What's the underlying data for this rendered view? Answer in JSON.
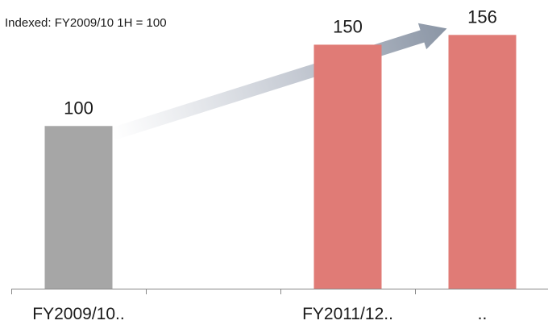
{
  "subtitle": "Indexed:  FY2009/10 1H = 100",
  "chart_data": {
    "type": "bar",
    "categories": [
      "FY2009/10..",
      "",
      "FY2011/12..",
      ".."
    ],
    "values": [
      100,
      null,
      150,
      156
    ],
    "ylim": [
      0,
      175
    ],
    "grid": false,
    "colors": [
      "#a6a6a6",
      null,
      "#e07b76",
      "#e07b76"
    ],
    "arrow_color": "#8a95a5",
    "axis_color": "#888888"
  }
}
